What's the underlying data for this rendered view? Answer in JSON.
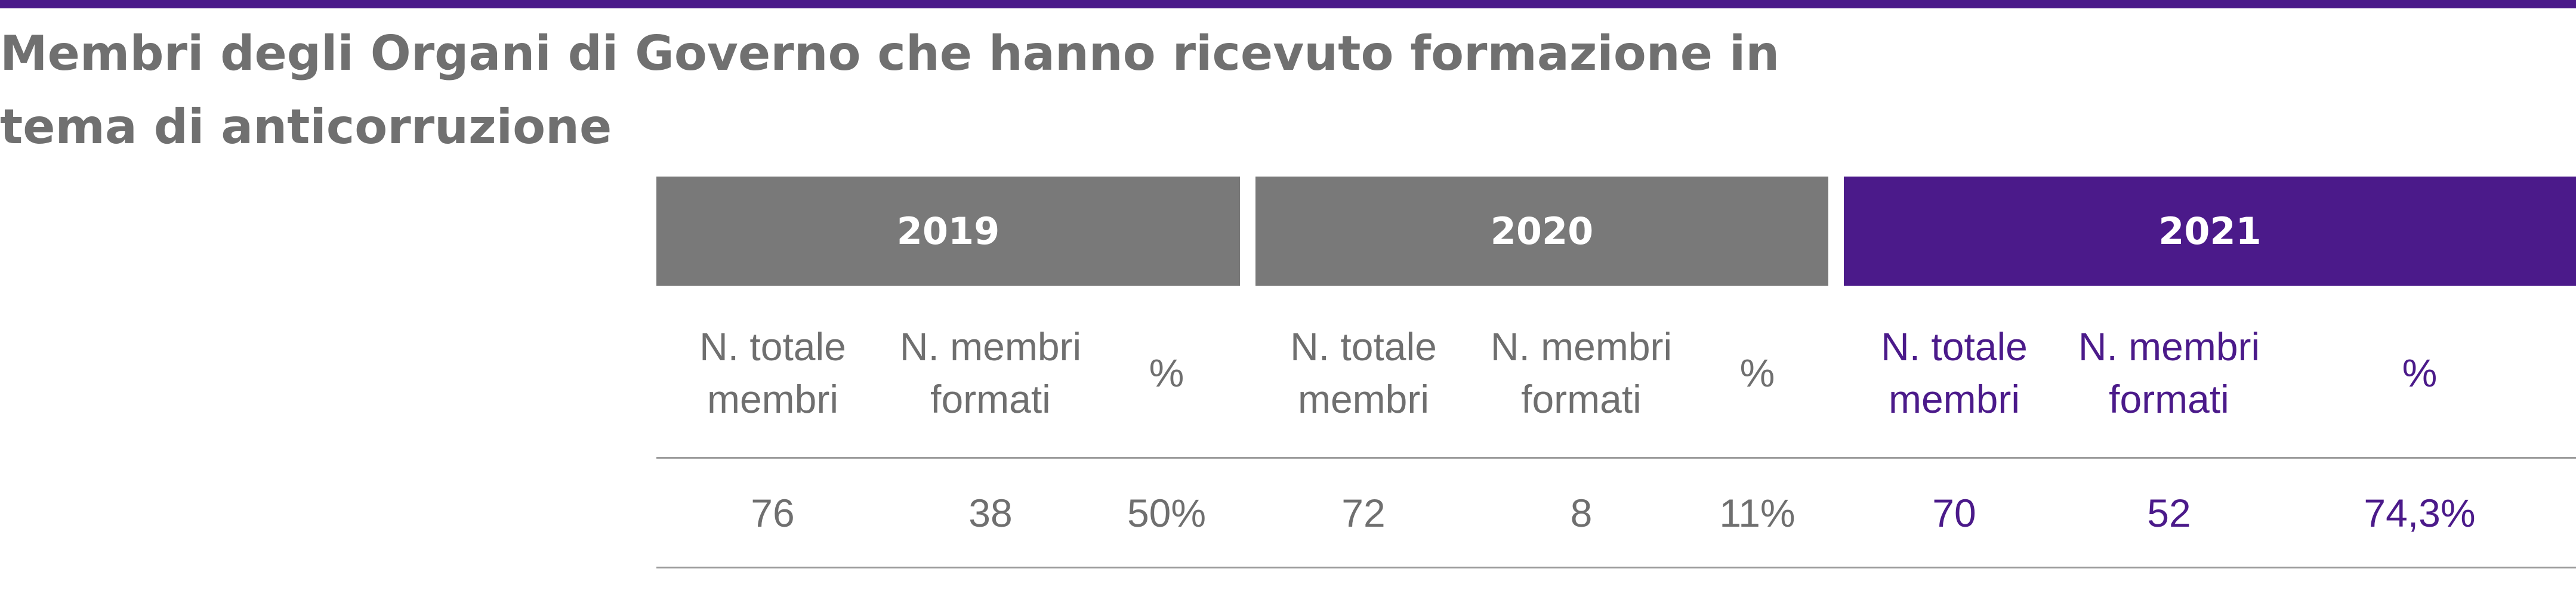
{
  "title": "Membri degli Organi di Governo che hanno ricevuto formazione in tema di anticorruzione",
  "colors": {
    "accent": "#4b1a8a",
    "header_grey": "#797979",
    "text_grey": "#6f6f6f"
  },
  "years": [
    {
      "year": "2019",
      "labels": {
        "totale": "N. totale membri",
        "formati": "N. membri formati",
        "perc": "%"
      },
      "values": {
        "totale": "76",
        "formati": "38",
        "perc": "50%"
      }
    },
    {
      "year": "2020",
      "labels": {
        "totale": "N. totale membri",
        "formati": "N. membri formati",
        "perc": "%"
      },
      "values": {
        "totale": "72",
        "formati": "8",
        "perc": "11%"
      }
    },
    {
      "year": "2021",
      "labels": {
        "totale": "N. totale membri",
        "formati": "N. membri formati",
        "perc": "%"
      },
      "values": {
        "totale": "70",
        "formati": "52",
        "perc": "74,3%"
      }
    }
  ]
}
